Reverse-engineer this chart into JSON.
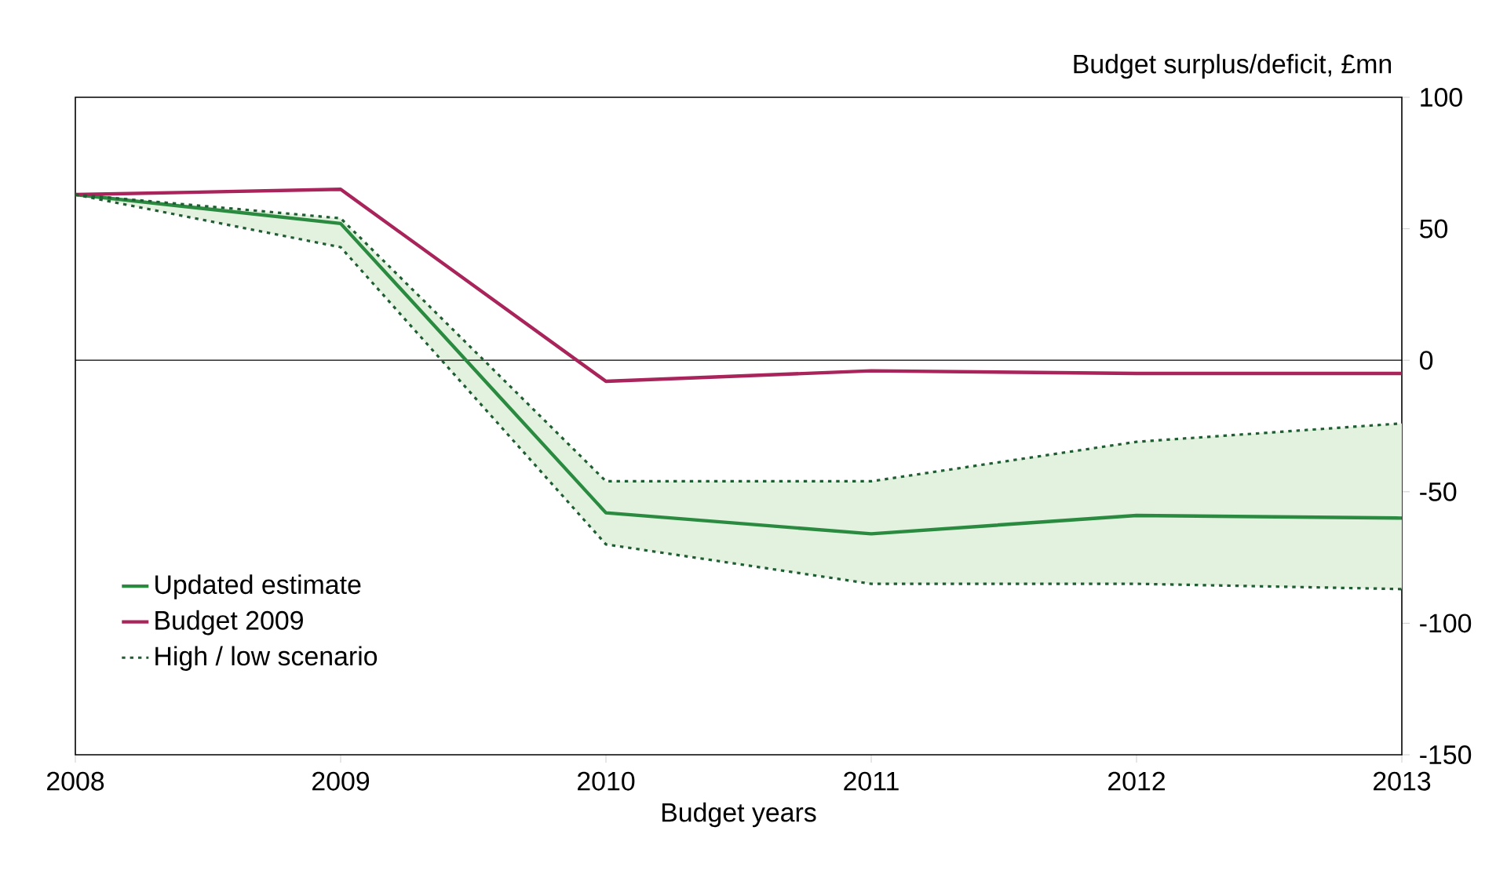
{
  "chart_data": {
    "type": "line",
    "xlabel": "Budget years",
    "ylabel": "Budget surplus/deficit, £mn",
    "x": [
      2008,
      2009,
      2010,
      2011,
      2012,
      2013
    ],
    "xlim": [
      2008,
      2013
    ],
    "xticks": [
      2008,
      2009,
      2010,
      2011,
      2012,
      2013
    ],
    "ylim": [
      -150,
      100
    ],
    "yticks": [
      -150,
      -100,
      -50,
      0,
      50,
      100
    ],
    "series": [
      {
        "name": "Updated estimate",
        "color": "#2a8a40",
        "line_style": "solid",
        "values": [
          63,
          52,
          -58,
          -66,
          -59,
          -60
        ],
        "lower": [
          63,
          43,
          -70,
          -85,
          -85,
          -87
        ],
        "upper": [
          63,
          54,
          -46,
          -46,
          -31,
          -24
        ]
      },
      {
        "name": "Budget 2009",
        "color": "#a8245a",
        "line_style": "solid",
        "values": [
          63,
          65,
          -8,
          -4,
          -5,
          -5
        ]
      },
      {
        "name": "High / low scenario",
        "color": "#1f5e32",
        "line_style": "dotted",
        "values": [
          63,
          54,
          -46,
          -46,
          -31,
          -24
        ]
      },
      {
        "color": "#1f5e32",
        "line_style": "dotted",
        "values": [
          63,
          43,
          -70,
          -85,
          -85,
          -87
        ]
      }
    ],
    "ref_lines": [
      {
        "axis": "y",
        "value": 0
      }
    ],
    "legend": "bottom left",
    "grid": false,
    "marker": "none"
  }
}
